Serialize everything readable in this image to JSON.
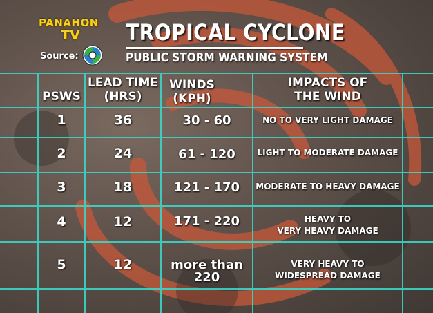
{
  "brand": {
    "name_line1": "PANAHON",
    "name_line2": "TV",
    "source_label": "Source:",
    "source_icon": "pagasa-logo-icon"
  },
  "title": {
    "main": "TROPICAL CYCLONE",
    "subtitle": "PUBLIC STORM WARNING SYSTEM"
  },
  "colors": {
    "grid": "#3ad6c8",
    "swirl": "#c8583a",
    "brand_yellow": "#f7d21a"
  },
  "table": {
    "headers": {
      "psws": "PSWS",
      "lead_time": [
        "LEAD TIME",
        "(HRS)"
      ],
      "winds": [
        "WINDS",
        "(KPH)"
      ],
      "impacts": [
        "IMPACTS OF",
        "THE WIND"
      ]
    },
    "rows": [
      {
        "psws": "1",
        "lead_time": "36",
        "winds": [
          "30 - 60"
        ],
        "impact": [
          "NO TO VERY LIGHT DAMAGE"
        ]
      },
      {
        "psws": "2",
        "lead_time": "24",
        "winds": [
          "61 - 120"
        ],
        "impact": [
          "LIGHT TO MODERATE DAMAGE"
        ]
      },
      {
        "psws": "3",
        "lead_time": "18",
        "winds": [
          "121 - 170"
        ],
        "impact": [
          "MODERATE TO HEAVY DAMAGE"
        ]
      },
      {
        "psws": "4",
        "lead_time": "12",
        "winds": [
          "171 - 220"
        ],
        "impact": [
          "HEAVY TO",
          "VERY HEAVY DAMAGE"
        ]
      },
      {
        "psws": "5",
        "lead_time": "12",
        "winds": [
          "more than",
          "220"
        ],
        "impact": [
          "VERY HEAVY TO",
          "WIDESPREAD DAMAGE"
        ]
      }
    ]
  }
}
